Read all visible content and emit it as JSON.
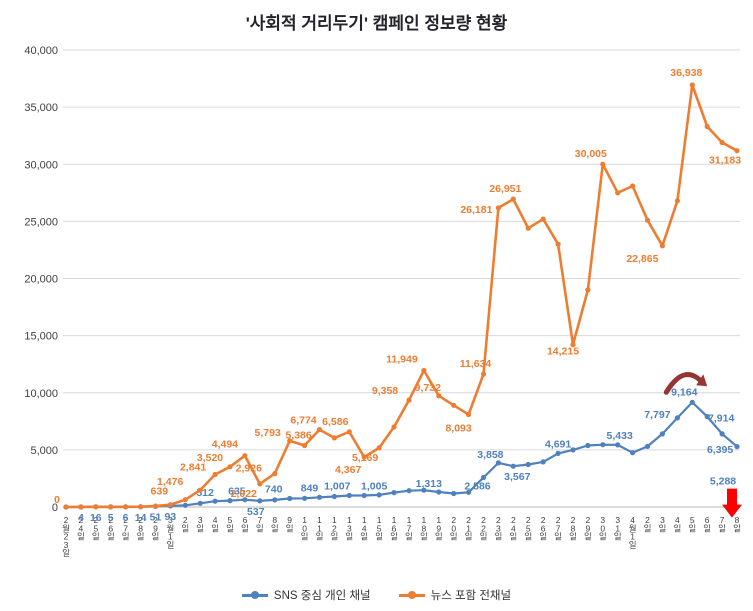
{
  "title": "'사회적 거리두기' 캠페인 정보량 현황",
  "legend": {
    "items": [
      {
        "label": "SNS 중심 개인 채널",
        "color": "#4e81bd"
      },
      {
        "label": "뉴스 포함 전채널",
        "color": "#ed7d31"
      }
    ]
  },
  "chart_data": {
    "type": "line",
    "title": "'사회적 거리두기' 캠페인 정보량 현황",
    "grid": true,
    "legend_position": "bottom",
    "y_axis": {
      "min": 0,
      "max": 40000,
      "step": 5000,
      "tick_labels": [
        "0",
        "5,000",
        "10,000",
        "15,000",
        "20,000",
        "25,000",
        "30,000",
        "35,000",
        "40,000"
      ]
    },
    "categories": [
      "2월23일",
      "24일",
      "25일",
      "26일",
      "27일",
      "28일",
      "29일",
      "3월1일",
      "2일",
      "3일",
      "4일",
      "5일",
      "6일",
      "7일",
      "8일",
      "9일",
      "10일",
      "11일",
      "12일",
      "13일",
      "14일",
      "15일",
      "16일",
      "17일",
      "18일",
      "19일",
      "20일",
      "21일",
      "22일",
      "23일",
      "24일",
      "25일",
      "26일",
      "27일",
      "28일",
      "29일",
      "30일",
      "31일",
      "4월1일",
      "2일",
      "3일",
      "4일",
      "5일",
      "6일",
      "7일",
      "8일"
    ],
    "series": [
      {
        "name": "SNS 중심 개인 채널",
        "color": "#4e81bd",
        "width": 2.2,
        "values": [
          0,
          4,
          16,
          5,
          6,
          14,
          51,
          93,
          150,
          320,
          512,
          560,
          635,
          537,
          620,
          740,
          760,
          849,
          920,
          1007,
          1005,
          1060,
          1260,
          1430,
          1470,
          1313,
          1180,
          1290,
          2586,
          3858,
          3567,
          3720,
          3950,
          4691,
          5000,
          5380,
          5450,
          5433,
          4750,
          5300,
          6400,
          7797,
          9164,
          7914,
          6395,
          5288
        ],
        "point_labels": [
          {
            "i": 1,
            "t": "4",
            "dx": 0,
            "dy": 14
          },
          {
            "i": 2,
            "t": "16",
            "dx": 0,
            "dy": 14
          },
          {
            "i": 3,
            "t": "5",
            "dx": 0,
            "dy": 14
          },
          {
            "i": 4,
            "t": "6",
            "dx": 0,
            "dy": 14
          },
          {
            "i": 5,
            "t": "14",
            "dx": 0,
            "dy": 14
          },
          {
            "i": 6,
            "t": "51",
            "dx": 0,
            "dy": 14
          },
          {
            "i": 7,
            "t": "93",
            "dx": 0,
            "dy": 14
          },
          {
            "i": 10,
            "t": "512",
            "dx": -10,
            "dy": -5
          },
          {
            "i": 12,
            "t": "635",
            "dx": -8,
            "dy": -5
          },
          {
            "i": 13,
            "t": "537",
            "dx": -4,
            "dy": 14
          },
          {
            "i": 15,
            "t": "740",
            "dx": -16,
            "dy": -6
          },
          {
            "i": 17,
            "t": "849",
            "dx": -10,
            "dy": -6
          },
          {
            "i": 19,
            "t": "1,007",
            "dx": -12,
            "dy": -6
          },
          {
            "i": 20,
            "t": "1,005",
            "dx": 10,
            "dy": -6
          },
          {
            "i": 25,
            "t": "1,313",
            "dx": -10,
            "dy": -5
          },
          {
            "i": 28,
            "t": "2,586",
            "dx": -6,
            "dy": 12
          },
          {
            "i": 29,
            "t": "3,858",
            "dx": -8,
            "dy": -5
          },
          {
            "i": 30,
            "t": "3,567",
            "dx": 4,
            "dy": 14
          },
          {
            "i": 33,
            "t": "4,691",
            "dx": 0,
            "dy": -6
          },
          {
            "i": 37,
            "t": "5,433",
            "dx": 2,
            "dy": -6
          },
          {
            "i": 41,
            "t": "7,797",
            "dx": -20,
            "dy": 0
          },
          {
            "i": 42,
            "t": "9,164",
            "dx": -8,
            "dy": -7
          },
          {
            "i": 43,
            "t": "7,914",
            "dx": 14,
            "dy": 5
          },
          {
            "i": 44,
            "t": "6,395",
            "dx": -2,
            "dy": 19
          },
          {
            "i": 45,
            "t": "5,288",
            "dx": -14,
            "dy": 38
          }
        ]
      },
      {
        "name": "뉴스 포함 전채널",
        "color": "#ed7d31",
        "width": 2.6,
        "values": [
          0,
          5,
          20,
          10,
          15,
          30,
          80,
          200,
          639,
          1476,
          2841,
          3520,
          4494,
          2022,
          2926,
          5793,
          5386,
          6774,
          6050,
          6586,
          4367,
          5169,
          7000,
          9358,
          11949,
          9732,
          8900,
          8093,
          11634,
          26181,
          26951,
          24400,
          25200,
          23000,
          14215,
          19000,
          30005,
          27500,
          28100,
          25100,
          22865,
          26800,
          36938,
          33300,
          31900,
          31183
        ],
        "point_labels": [
          {
            "i": 0,
            "t": "0",
            "dx": -9,
            "dy": -4
          },
          {
            "i": 8,
            "t": "639",
            "dx": -26,
            "dy": -5
          },
          {
            "i": 9,
            "t": "1,476",
            "dx": -30,
            "dy": -5
          },
          {
            "i": 10,
            "t": "2,841",
            "dx": -22,
            "dy": -4
          },
          {
            "i": 11,
            "t": "3,520",
            "dx": -20,
            "dy": -6
          },
          {
            "i": 12,
            "t": "4,494",
            "dx": -20,
            "dy": -8
          },
          {
            "i": 13,
            "t": "2,022",
            "dx": -16,
            "dy": 13
          },
          {
            "i": 14,
            "t": "2,926",
            "dx": -26,
            "dy": -2
          },
          {
            "i": 15,
            "t": "5,793",
            "dx": -22,
            "dy": -5
          },
          {
            "i": 16,
            "t": "5,386",
            "dx": -6,
            "dy": -7
          },
          {
            "i": 17,
            "t": "6,774",
            "dx": -16,
            "dy": -6
          },
          {
            "i": 19,
            "t": "6,586",
            "dx": -14,
            "dy": -7
          },
          {
            "i": 20,
            "t": "4,367",
            "dx": -16,
            "dy": 16
          },
          {
            "i": 21,
            "t": "5,169",
            "dx": -14,
            "dy": 13
          },
          {
            "i": 23,
            "t": "9,358",
            "dx": -24,
            "dy": -6
          },
          {
            "i": 24,
            "t": "11,949",
            "dx": -22,
            "dy": -8
          },
          {
            "i": 25,
            "t": "9,732",
            "dx": -11,
            "dy": -5
          },
          {
            "i": 27,
            "t": "8,093",
            "dx": -10,
            "dy": 17
          },
          {
            "i": 28,
            "t": "11,634",
            "dx": -8,
            "dy": -7
          },
          {
            "i": 29,
            "t": "26,181",
            "dx": -22,
            "dy": 5
          },
          {
            "i": 30,
            "t": "26,951",
            "dx": -8,
            "dy": -7
          },
          {
            "i": 34,
            "t": "14,215",
            "dx": -10,
            "dy": 10
          },
          {
            "i": 36,
            "t": "30,005",
            "dx": -12,
            "dy": -7
          },
          {
            "i": 40,
            "t": "22,865",
            "dx": -20,
            "dy": 16
          },
          {
            "i": 42,
            "t": "36,938",
            "dx": -6,
            "dy": -9
          },
          {
            "i": 45,
            "t": "31,183",
            "dx": -12,
            "dy": 13
          }
        ]
      }
    ],
    "annotations": [
      {
        "name": "peak-trend-curved-arrow",
        "shape": "curved-arrow",
        "color": "#963634",
        "series": 0,
        "index": 42
      },
      {
        "name": "final-drop-red-arrow",
        "shape": "down-arrow",
        "color": "#fe0000",
        "series": 0,
        "index": 45
      }
    ]
  }
}
